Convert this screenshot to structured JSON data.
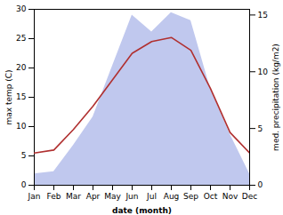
{
  "chart_data": {
    "type": "line",
    "categories": [
      "Jan",
      "Feb",
      "Mar",
      "Apr",
      "May",
      "Jun",
      "Jul",
      "Aug",
      "Sep",
      "Oct",
      "Nov",
      "Dec"
    ],
    "series": [
      {
        "type": "area",
        "axis": "y2",
        "color": "#c0c8ee",
        "values": [
          1.0,
          1.2,
          3.5,
          6.0,
          10.5,
          15.0,
          13.5,
          15.2,
          14.5,
          8.5,
          4.5,
          1.0
        ]
      },
      {
        "type": "line",
        "axis": "y",
        "color": "#b03030",
        "values": [
          5.5,
          6.0,
          9.5,
          13.5,
          18.0,
          22.5,
          24.5,
          25.2,
          23.0,
          16.5,
          9.0,
          5.5
        ]
      }
    ],
    "xlabel": "date (month)",
    "ylabel": "max temp (C)",
    "y2label": "med. precipitation (kg/m2)",
    "ylim": [
      0,
      30
    ],
    "yticks": [
      0,
      5,
      10,
      15,
      20,
      25,
      30
    ],
    "y2lim": [
      0,
      15.5
    ],
    "y2ticks": [
      0,
      5,
      10,
      15
    ],
    "grid": false
  }
}
